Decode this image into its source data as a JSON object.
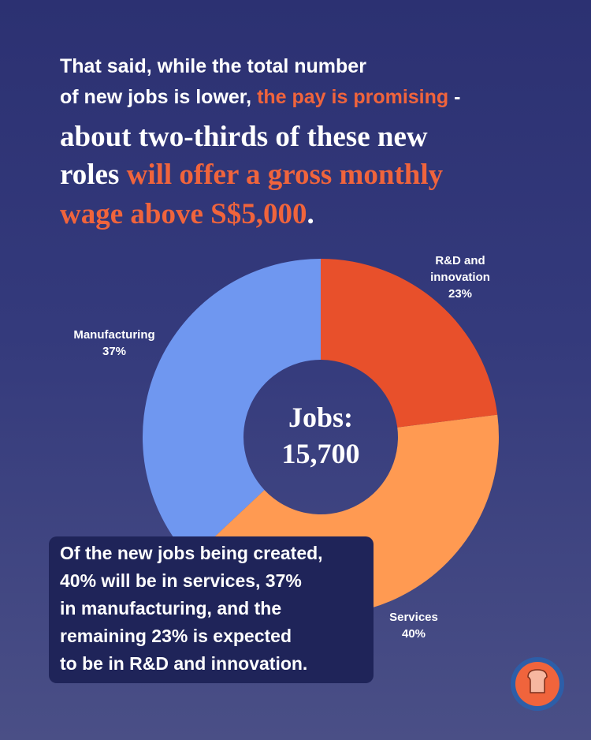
{
  "headline": {
    "lines": [
      [
        {
          "text": "That said, while the total number"
        }
      ],
      [
        {
          "text": "of new jobs is lower, "
        },
        {
          "text": "the pay is promising",
          "highlight": true
        },
        {
          "text": " -"
        }
      ],
      [
        {
          "text": "about two-thirds of these new"
        }
      ],
      [
        {
          "text": "roles "
        },
        {
          "text": "will offer a gross monthly",
          "highlight": true
        }
      ],
      [
        {
          "text": "wage above S$5,000",
          "highlight": true
        },
        {
          "text": "."
        }
      ]
    ]
  },
  "chart_data": {
    "type": "donut",
    "categories": [
      "R&D and innovation",
      "Services",
      "Manufacturing"
    ],
    "values": [
      23,
      40,
      37
    ],
    "value_labels": [
      "23%",
      "40%",
      "37%"
    ],
    "colors": [
      "#e8502b",
      "#ff9a52",
      "#6f97f0"
    ],
    "center_text": [
      "Jobs:",
      "15,700"
    ]
  },
  "caption": {
    "lines": [
      "Of the new jobs being created,",
      "40% will be in services, 37%",
      "in manufacturing, and the",
      "remaining 23% is expected",
      "to be in R&D and innovation."
    ]
  }
}
